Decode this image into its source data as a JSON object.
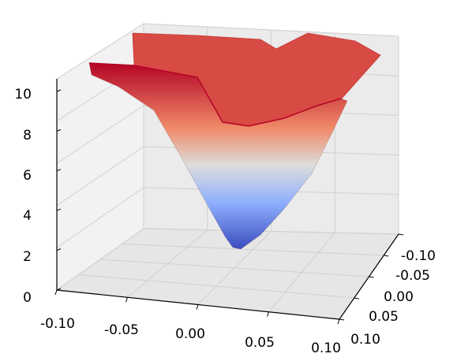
{
  "chart_data": {
    "type": "surface3d",
    "title": "",
    "xlabel": "",
    "ylabel": "",
    "zlabel": "",
    "colormap": "coolwarm",
    "xlim": [
      -0.1,
      0.1
    ],
    "ylim": [
      -0.1,
      0.1
    ],
    "zlim": [
      0,
      10
    ],
    "x_ticks": [
      "-0.10",
      "-0.05",
      "0.00",
      "0.05",
      "0.10"
    ],
    "y_ticks": [
      "-0.10",
      "-0.05",
      "0.00",
      "0.05",
      "0.10"
    ],
    "z_ticks": [
      "0",
      "2",
      "4",
      "6",
      "8",
      "10"
    ],
    "grid": true,
    "surface": {
      "description_values": "z near 10 across the outer region, descending to a minimum of about 1.5 near x=0.01, y=0.01",
      "minimum": {
        "x": 0.01,
        "y": 0.01,
        "z": 1.5
      },
      "max_z": 10
    },
    "colors": {
      "pane": "#f2f2f2",
      "grid": "#d0d0d0",
      "low": "#3b4cc0",
      "mid": "#dddddd",
      "high": "#b40426"
    }
  }
}
